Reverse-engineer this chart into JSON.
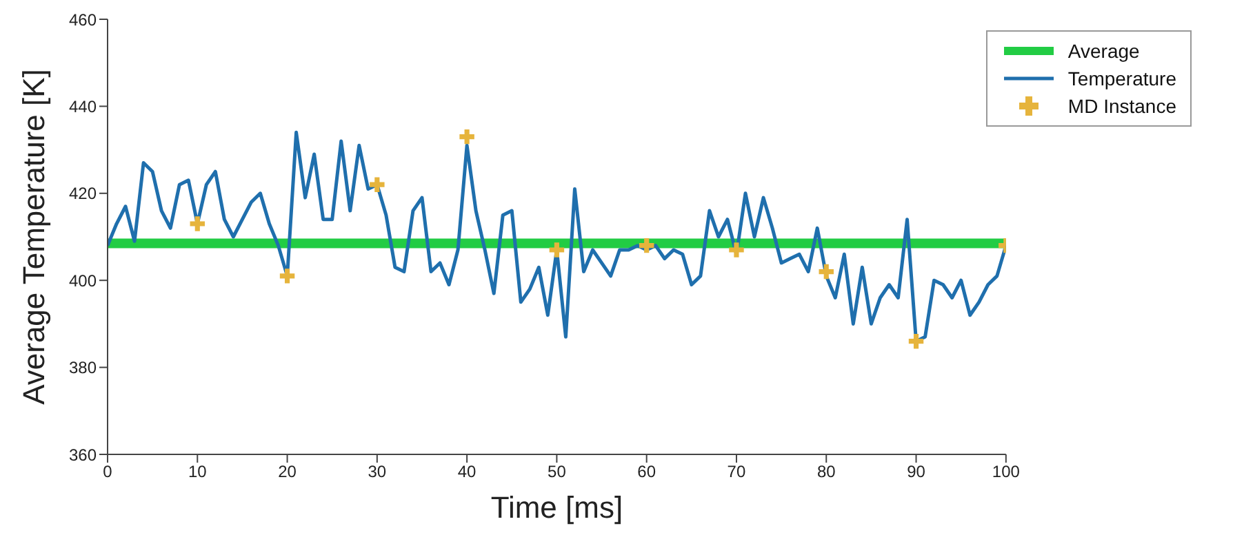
{
  "chart_data": {
    "type": "line",
    "xlabel": "Time [ms]",
    "ylabel": "Average Temperature [K]",
    "xlim": [
      0,
      100
    ],
    "xticks": [
      0,
      10,
      20,
      30,
      40,
      50,
      60,
      70,
      80,
      90,
      100
    ],
    "ylim": [
      360,
      460
    ],
    "yticks": [
      360,
      380,
      400,
      420,
      440,
      460
    ],
    "grid": false,
    "legend": "top right",
    "series": [
      {
        "name": "Average",
        "color": "#22cc44",
        "marker": "none",
        "x": [
          0,
          100
        ],
        "values": [
          408.5,
          408.5
        ]
      },
      {
        "name": "Temperature",
        "color": "#1f6fad",
        "marker": "none",
        "x": [
          0,
          1,
          2,
          3,
          4,
          5,
          6,
          7,
          8,
          9,
          10,
          11,
          12,
          13,
          14,
          15,
          16,
          17,
          18,
          19,
          20,
          21,
          22,
          23,
          24,
          25,
          26,
          27,
          28,
          29,
          30,
          31,
          32,
          33,
          34,
          35,
          36,
          37,
          38,
          39,
          40,
          41,
          42,
          43,
          44,
          45,
          46,
          47,
          48,
          49,
          50,
          51,
          52,
          53,
          54,
          55,
          56,
          57,
          58,
          59,
          60,
          61,
          62,
          63,
          64,
          65,
          66,
          67,
          68,
          69,
          70,
          71,
          72,
          73,
          74,
          75,
          76,
          77,
          78,
          79,
          80,
          81,
          82,
          83,
          84,
          85,
          86,
          87,
          88,
          89,
          90,
          91,
          92,
          93,
          94,
          95,
          96,
          97,
          98,
          99,
          100
        ],
        "values": [
          408,
          413,
          417,
          409,
          427,
          425,
          416,
          412,
          422,
          423,
          413,
          422,
          425,
          414,
          410,
          414,
          418,
          420,
          413,
          408,
          401,
          434,
          419,
          429,
          414,
          414,
          432,
          416,
          431,
          421,
          422,
          415,
          403,
          402,
          416,
          419,
          402,
          404,
          399,
          407,
          431,
          416,
          407,
          397,
          415,
          416,
          395,
          398,
          403,
          392,
          407,
          387,
          421,
          402,
          407,
          404,
          401,
          407,
          407,
          408,
          407,
          408,
          405,
          407,
          406,
          399,
          401,
          416,
          410,
          414,
          406,
          420,
          410,
          419,
          412,
          404,
          405,
          406,
          402,
          412,
          401,
          396,
          406,
          390,
          403,
          390,
          396,
          399,
          396,
          414,
          386,
          387,
          400,
          399,
          396,
          400,
          392,
          395,
          399,
          401,
          408
        ]
      },
      {
        "name": "MD Instance",
        "type": "scatter",
        "color": "#e6b43c",
        "marker": "cross",
        "x": [
          10,
          20,
          30,
          40,
          50,
          60,
          70,
          80,
          90,
          100
        ],
        "values": [
          413,
          401,
          422,
          433,
          407,
          408,
          407,
          402,
          386,
          408
        ]
      }
    ]
  }
}
